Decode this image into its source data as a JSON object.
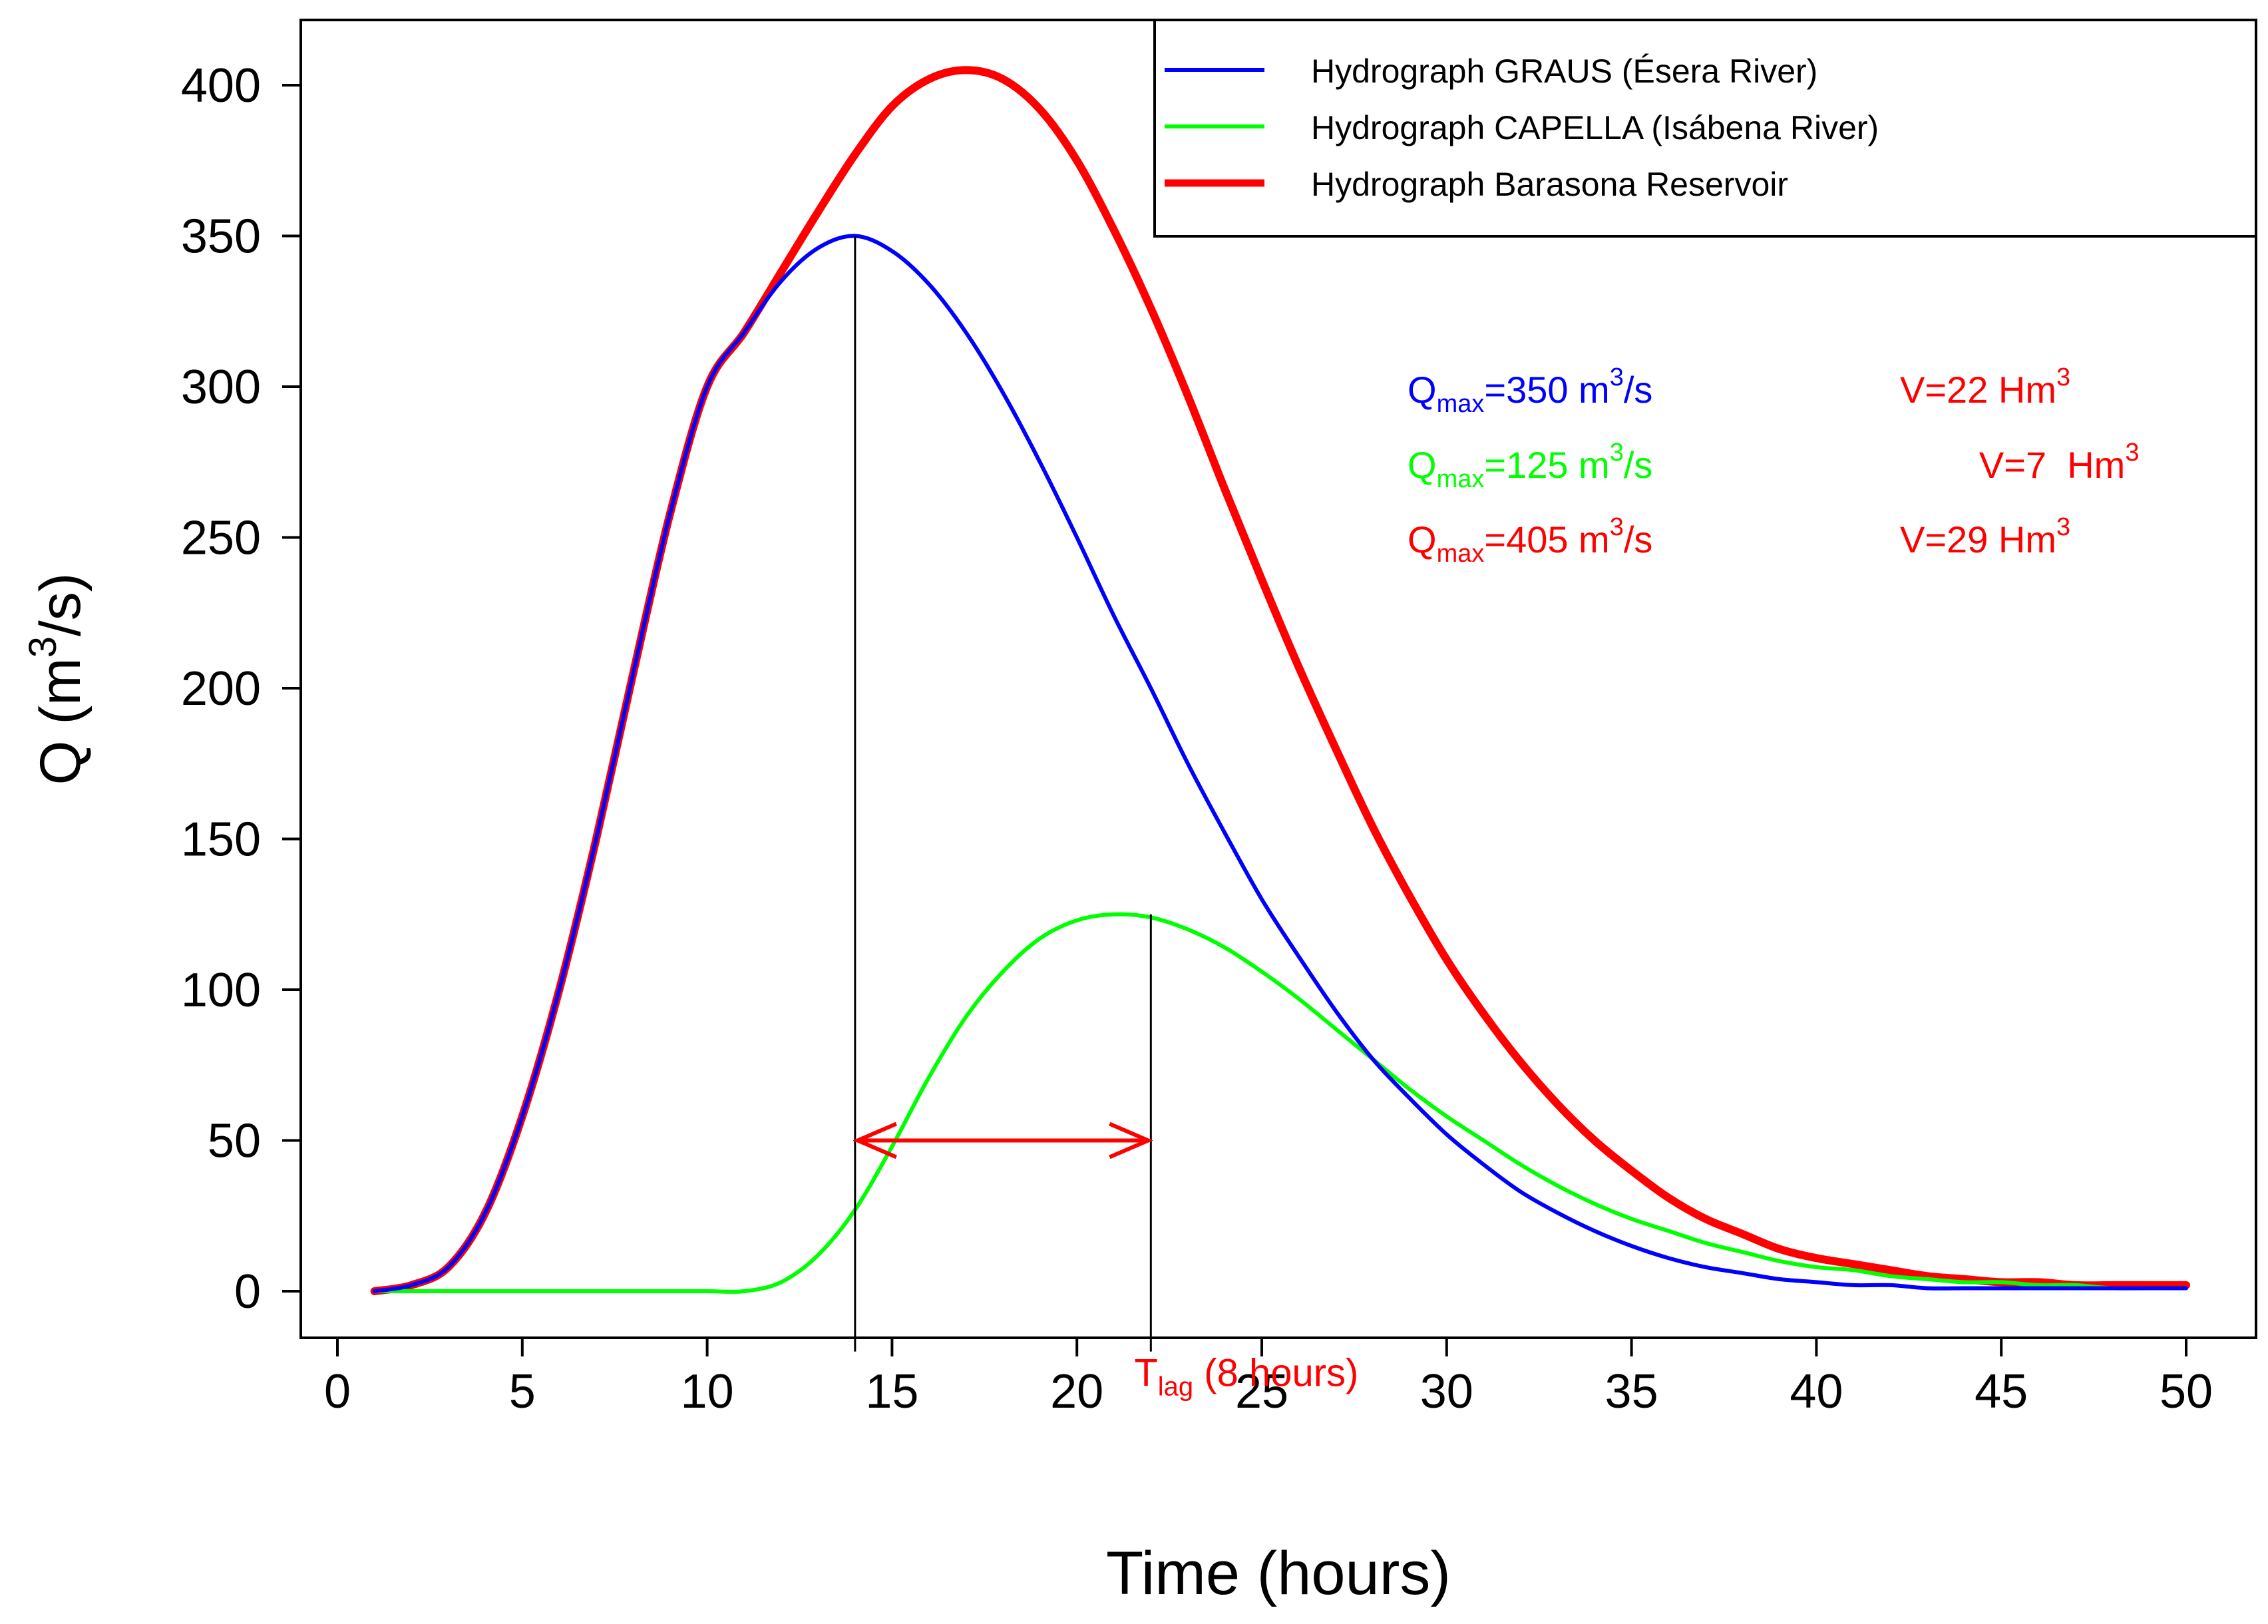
{
  "chart_data": {
    "type": "line",
    "title": "",
    "xlabel": "Time (hours)",
    "ylabel_main": "Q (m",
    "ylabel_sup": "3",
    "ylabel_end": "/s)",
    "xlim": [
      0,
      50
    ],
    "ylim": [
      -16,
      423
    ],
    "xticks": [
      0,
      5,
      10,
      15,
      20,
      25,
      30,
      35,
      40,
      45,
      50
    ],
    "yticks": [
      0,
      50,
      100,
      150,
      200,
      250,
      300,
      350,
      400
    ],
    "grid": false,
    "legend_position": "top-right",
    "series": [
      {
        "name": "Hydrograph GRAUS (Ésera River)",
        "color": "#0000ff",
        "x": [
          1,
          2,
          3,
          4,
          5,
          6,
          7,
          8,
          9,
          10,
          11,
          12,
          13,
          14,
          15,
          16,
          17,
          18,
          19,
          20,
          21,
          22,
          23,
          24,
          25,
          26,
          27,
          28,
          29,
          30,
          31,
          32,
          33,
          34,
          35,
          36,
          37,
          38,
          39,
          40,
          41,
          42,
          43,
          44,
          45,
          46,
          47,
          48,
          49,
          50
        ],
        "values": [
          0,
          2,
          8,
          26,
          58,
          100,
          150,
          205,
          258,
          300,
          318,
          335,
          346,
          350,
          345,
          334,
          318,
          298,
          275,
          250,
          224,
          200,
          175,
          152,
          130,
          111,
          93,
          77,
          64,
          52,
          42,
          33,
          26,
          20,
          15,
          11,
          8,
          6,
          4,
          3,
          2,
          2,
          1,
          1,
          1,
          1,
          1,
          1,
          1,
          1
        ]
      },
      {
        "name": "Hydrograph CAPELLA (Isábena River)",
        "color": "#00ff00",
        "x": [
          1,
          2,
          3,
          4,
          5,
          6,
          7,
          8,
          9,
          10,
          11,
          12,
          13,
          14,
          15,
          16,
          17,
          18,
          19,
          20,
          21,
          22,
          23,
          24,
          25,
          26,
          27,
          28,
          29,
          30,
          31,
          32,
          33,
          34,
          35,
          36,
          37,
          38,
          39,
          40,
          41,
          42,
          43,
          44,
          45,
          46,
          47,
          48,
          49,
          50
        ],
        "values": [
          0,
          0,
          0,
          0,
          0,
          0,
          0,
          0,
          0,
          0,
          0,
          3,
          12,
          27,
          48,
          71,
          91,
          106,
          117,
          123,
          125,
          124,
          120,
          114,
          106,
          97,
          87,
          77,
          67,
          58,
          50,
          42,
          35,
          29,
          24,
          20,
          16,
          13,
          10,
          8,
          7,
          5,
          4,
          3,
          3,
          2,
          2,
          1,
          1,
          1
        ]
      },
      {
        "name": "Hydrograph Barasona Reservoir",
        "color": "#ff0000",
        "x": [
          1,
          2,
          3,
          4,
          5,
          6,
          7,
          8,
          9,
          10,
          11,
          12,
          13,
          14,
          15,
          16,
          17,
          18,
          19,
          20,
          21,
          22,
          23,
          24,
          25,
          26,
          27,
          28,
          29,
          30,
          31,
          32,
          33,
          34,
          35,
          36,
          37,
          38,
          39,
          40,
          41,
          42,
          43,
          44,
          45,
          46,
          47,
          48,
          49,
          50
        ],
        "values": [
          0,
          2,
          8,
          26,
          58,
          100,
          150,
          205,
          258,
          300,
          318,
          338,
          358,
          377,
          393,
          402,
          405,
          402,
          392,
          375,
          352,
          326,
          297,
          266,
          236,
          207,
          180,
          154,
          131,
          110,
          92,
          76,
          62,
          50,
          40,
          31,
          24,
          19,
          14,
          11,
          9,
          7,
          5,
          4,
          3,
          3,
          2,
          2,
          2,
          2
        ]
      }
    ],
    "annotations": {
      "series_summaries": [
        {
          "q_prefix": "Q",
          "q_sub": "max",
          "q_value": "=350 m",
          "q_sup": "3",
          "q_unit": "/s",
          "v_label": "V=22 Hm",
          "v_sup": "3",
          "color": "#0000ff",
          "v_color": "#ff0000"
        },
        {
          "q_prefix": "Q",
          "q_sub": "max",
          "q_value": "=125 m",
          "q_sup": "3",
          "q_unit": "/s",
          "v_label": "V=7  Hm",
          "v_sup": "3",
          "color": "#00ff00",
          "v_color": "#ff0000"
        },
        {
          "q_prefix": "Q",
          "q_sub": "max",
          "q_value": "=405 m",
          "q_sup": "3",
          "q_unit": "/s",
          "v_label": "V=29 Hm",
          "v_sup": "3",
          "color": "#ff0000",
          "v_color": "#ff0000"
        }
      ],
      "tlag": {
        "prefix": "T",
        "sub": "lag",
        "suffix": " (8 hours)",
        "color": "#ff0000",
        "from_x": 14,
        "to_x": 22,
        "arrow_y": 50,
        "line_top_graus": 350,
        "line_top_capella": 125,
        "line_bottom": -20
      }
    }
  }
}
